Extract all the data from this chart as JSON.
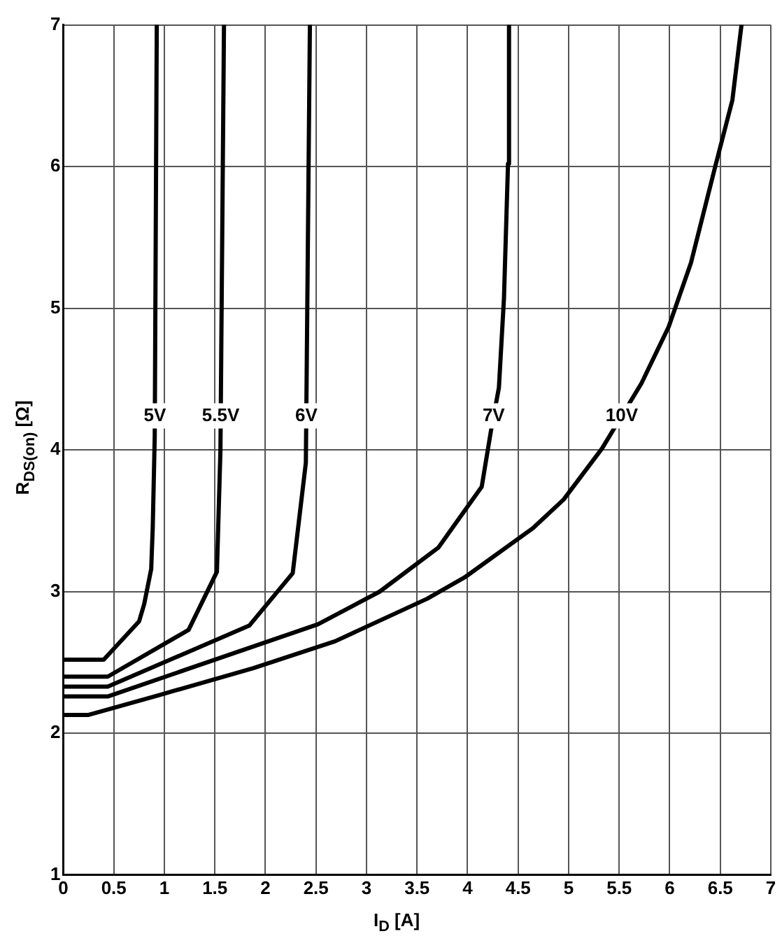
{
  "chart_data": {
    "type": "line",
    "xlabel": "I$_{D}$ [A]",
    "ylabel": "R$_{DS(on)}$ [Ω]",
    "xlim": [
      0,
      7
    ],
    "xticks": [
      0,
      0.5,
      1,
      1.5,
      2,
      2.5,
      3,
      3.5,
      4,
      4.5,
      5,
      5.5,
      6,
      6.5,
      7
    ],
    "ylim": [
      1,
      7
    ],
    "yticks": [
      1,
      2,
      3,
      4,
      5,
      6,
      7
    ],
    "grid": true,
    "legend": false,
    "marker": "none",
    "line_style": "solid",
    "series": [
      {
        "name": "5V",
        "color": "#000000",
        "x": [
          0,
          0.4,
          0.75,
          0.8,
          0.87,
          0.885,
          0.905,
          0.925
        ],
        "values": [
          2.52,
          2.52,
          2.79,
          2.91,
          3.16,
          3.45,
          4.1,
          7
        ]
      },
      {
        "name": "5.5V",
        "color": "#000000",
        "x": [
          0,
          0.44,
          1.24,
          1.52,
          1.555,
          1.59
        ],
        "values": [
          2.4,
          2.4,
          2.73,
          3.14,
          4.0,
          7
        ]
      },
      {
        "name": "6V",
        "color": "#000000",
        "x": [
          0,
          0.44,
          1.84,
          2.27,
          2.4,
          2.44
        ],
        "values": [
          2.33,
          2.33,
          2.76,
          3.13,
          3.91,
          7
        ]
      },
      {
        "name": "7V",
        "color": "#000000",
        "x": [
          0,
          0.44,
          2.52,
          3.13,
          3.71,
          4.14,
          4.23,
          4.31,
          4.36,
          4.4,
          4.41
        ],
        "values": [
          2.26,
          2.26,
          2.77,
          3.0,
          3.31,
          3.74,
          4.13,
          4.44,
          5.07,
          6.02,
          7
        ]
      },
      {
        "name": "10V",
        "color": "#000000",
        "x": [
          0,
          0.25,
          0.95,
          1.88,
          2.69,
          3.6,
          3.97,
          4.65,
          4.95,
          5.33,
          5.72,
          5.99,
          6.21,
          6.45,
          6.62,
          6.71
        ],
        "values": [
          2.13,
          2.13,
          2.27,
          2.46,
          2.65,
          2.95,
          3.1,
          3.45,
          3.65,
          4.01,
          4.47,
          4.87,
          5.32,
          6.0,
          6.47,
          7
        ]
      }
    ]
  }
}
